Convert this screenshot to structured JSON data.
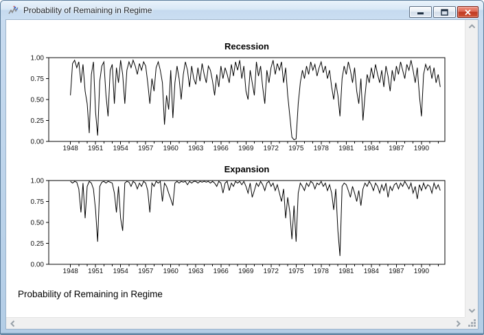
{
  "window": {
    "title": "Probability of Remaining in Regime",
    "icon": "graph-icon",
    "controls": {
      "minimize_label": "minimize",
      "maximize_label": "maximize",
      "close_label": "close"
    }
  },
  "caption": "Probability of Remaining in Regime",
  "colors": {
    "titlebar": "#cde0f2",
    "border_glass": "#b3cde6",
    "close_button_red": "#c03a24",
    "line_color": "#000000",
    "scroll_track": "#f0f0f0",
    "background": "#ffffff"
  },
  "icons": [
    "graph-icon",
    "minimize-icon",
    "maximize-icon",
    "close-icon",
    "chevron-up-icon",
    "chevron-down-icon",
    "chevron-left-icon",
    "chevron-right-icon",
    "resize-grip-icon"
  ],
  "chart_data": [
    {
      "type": "line",
      "title": "Recession",
      "xlabel": "",
      "ylabel": "",
      "ylim": [
        0,
        1
      ],
      "ytick_values": [
        1.0,
        0.75,
        0.5,
        0.25,
        0.0
      ],
      "ytick_labels": [
        "1.00",
        "0.75",
        "0.50",
        "0.25",
        "0.00"
      ],
      "xlim": [
        1945.4,
        1992.8
      ],
      "xticks_major": [
        1948,
        1951,
        1954,
        1957,
        1960,
        1963,
        1966,
        1969,
        1972,
        1975,
        1978,
        1981,
        1984,
        1987,
        1990
      ],
      "xticks_minor_step": 1,
      "grid": false,
      "legend": "none",
      "x_start": 1948.0,
      "x_step": 0.25,
      "values": [
        0.55,
        0.93,
        0.97,
        0.88,
        0.95,
        0.7,
        0.92,
        0.6,
        0.45,
        0.1,
        0.8,
        0.95,
        0.35,
        0.07,
        0.72,
        0.9,
        0.95,
        0.55,
        0.3,
        0.85,
        0.92,
        0.45,
        0.88,
        0.7,
        0.97,
        0.8,
        0.45,
        0.85,
        0.95,
        0.88,
        0.97,
        0.9,
        0.8,
        0.93,
        0.85,
        0.95,
        0.9,
        0.7,
        0.45,
        0.75,
        0.6,
        0.88,
        0.95,
        0.85,
        0.7,
        0.2,
        0.55,
        0.38,
        0.85,
        0.28,
        0.7,
        0.9,
        0.75,
        0.5,
        0.8,
        0.95,
        0.85,
        0.65,
        0.9,
        0.75,
        0.68,
        0.88,
        0.72,
        0.93,
        0.8,
        0.7,
        0.9,
        0.85,
        0.72,
        0.55,
        0.8,
        0.65,
        0.9,
        0.75,
        0.88,
        0.8,
        0.7,
        0.92,
        0.78,
        0.95,
        0.85,
        0.97,
        0.75,
        0.9,
        0.6,
        0.5,
        0.85,
        0.7,
        0.55,
        0.95,
        0.78,
        0.9,
        0.65,
        0.45,
        0.85,
        0.7,
        0.88,
        0.97,
        0.8,
        0.93,
        0.85,
        0.95,
        0.7,
        0.88,
        0.55,
        0.3,
        0.05,
        0.02,
        0.03,
        0.45,
        0.7,
        0.85,
        0.75,
        0.9,
        0.8,
        0.95,
        0.85,
        0.92,
        0.78,
        0.88,
        0.95,
        0.82,
        0.9,
        0.75,
        0.85,
        0.65,
        0.5,
        0.7,
        0.55,
        0.3,
        0.75,
        0.9,
        0.8,
        0.95,
        0.85,
        0.7,
        0.88,
        0.6,
        0.45,
        0.75,
        0.25,
        0.55,
        0.8,
        0.7,
        0.88,
        0.75,
        0.92,
        0.8,
        0.7,
        0.85,
        0.65,
        0.9,
        0.78,
        0.6,
        0.85,
        0.72,
        0.9,
        0.8,
        0.95,
        0.85,
        0.75,
        0.92,
        0.85,
        0.97,
        0.85,
        0.7,
        0.88,
        0.55,
        0.3,
        0.8,
        0.92,
        0.85,
        0.9,
        0.75,
        0.88,
        0.7,
        0.8,
        0.65
      ]
    },
    {
      "type": "line",
      "title": "Expansion",
      "xlabel": "",
      "ylabel": "",
      "ylim": [
        0,
        1
      ],
      "ytick_values": [
        1.0,
        0.75,
        0.5,
        0.25,
        0.0
      ],
      "ytick_labels": [
        "1.00",
        "0.75",
        "0.50",
        "0.25",
        "0.00"
      ],
      "xlim": [
        1945.4,
        1992.8
      ],
      "xticks_major": [
        1948,
        1951,
        1954,
        1957,
        1960,
        1963,
        1966,
        1969,
        1972,
        1975,
        1978,
        1981,
        1984,
        1987,
        1990
      ],
      "xticks_minor_step": 1,
      "grid": false,
      "legend": "none",
      "x_start": 1948.0,
      "x_step": 0.25,
      "values": [
        0.99,
        0.97,
        0.99,
        0.98,
        0.9,
        0.62,
        0.97,
        0.55,
        0.93,
        0.99,
        0.97,
        0.9,
        0.65,
        0.27,
        0.93,
        0.98,
        0.99,
        0.97,
        0.99,
        0.98,
        0.97,
        0.85,
        0.62,
        0.93,
        0.55,
        0.4,
        0.97,
        0.99,
        0.98,
        0.93,
        0.99,
        0.97,
        0.9,
        0.97,
        0.93,
        0.99,
        0.97,
        0.88,
        0.62,
        0.97,
        0.93,
        0.99,
        0.97,
        0.99,
        0.75,
        0.97,
        0.93,
        0.85,
        0.78,
        0.7,
        0.97,
        0.99,
        0.97,
        0.99,
        0.98,
        0.99,
        0.95,
        0.99,
        0.97,
        0.99,
        0.99,
        0.97,
        0.99,
        0.98,
        0.99,
        0.98,
        0.99,
        0.97,
        0.99,
        0.97,
        0.93,
        0.99,
        0.97,
        0.85,
        0.97,
        0.99,
        0.88,
        0.97,
        0.93,
        0.99,
        0.97,
        0.99,
        0.95,
        0.99,
        0.93,
        0.85,
        0.97,
        0.8,
        0.88,
        0.97,
        0.93,
        0.99,
        0.95,
        0.88,
        0.97,
        0.99,
        0.93,
        0.97,
        0.88,
        0.95,
        0.85,
        0.75,
        0.9,
        0.55,
        0.8,
        0.62,
        0.3,
        0.7,
        0.27,
        0.85,
        0.97,
        0.93,
        0.88,
        0.97,
        0.93,
        0.99,
        0.97,
        0.9,
        0.97,
        0.95,
        0.99,
        0.93,
        0.97,
        0.88,
        0.95,
        0.85,
        0.65,
        0.9,
        0.4,
        0.1,
        0.93,
        0.97,
        0.95,
        0.88,
        0.8,
        0.93,
        0.85,
        0.75,
        0.88,
        0.7,
        0.9,
        0.97,
        0.93,
        0.99,
        0.95,
        0.88,
        0.97,
        0.93,
        0.85,
        0.95,
        0.88,
        0.97,
        0.8,
        0.93,
        0.88,
        0.95,
        0.97,
        0.9,
        0.97,
        0.93,
        0.99,
        0.95,
        0.9,
        0.97,
        0.85,
        0.93,
        0.78,
        0.95,
        0.88,
        0.97,
        0.9,
        0.95,
        0.93,
        0.85,
        0.97,
        0.9,
        0.95,
        0.88
      ]
    }
  ]
}
